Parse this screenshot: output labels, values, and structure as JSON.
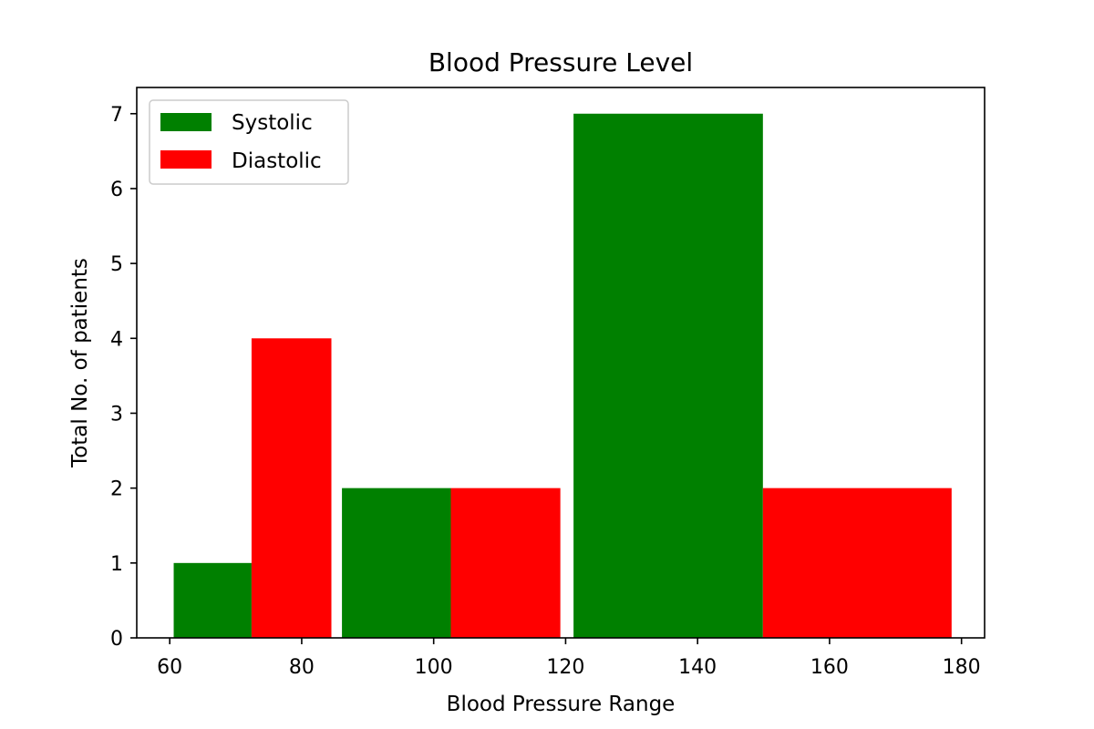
{
  "chart_data": {
    "type": "bar",
    "title": "Blood Pressure Level",
    "xlabel": "Blood Pressure Range",
    "ylabel": "Total No. of patients",
    "xlim": [
      55.0,
      183.5
    ],
    "ylim": [
      0,
      7.35
    ],
    "x_ticks": [
      60,
      80,
      100,
      120,
      140,
      160,
      180
    ],
    "y_ticks": [
      0,
      1,
      2,
      3,
      4,
      5,
      6,
      7
    ],
    "grid": false,
    "legend_position": "top-left",
    "series": [
      {
        "name": "Systolic",
        "color": "#008000",
        "bars": [
          {
            "x0": 60.6,
            "x1": 72.4,
            "value": 1
          },
          {
            "x0": 86.1,
            "x1": 102.6,
            "value": 2
          },
          {
            "x0": 121.2,
            "x1": 149.9,
            "value": 7
          }
        ]
      },
      {
        "name": "Diastolic",
        "color": "#ff0000",
        "bars": [
          {
            "x0": 72.4,
            "x1": 84.5,
            "value": 4
          },
          {
            "x0": 102.6,
            "x1": 119.2,
            "value": 2
          },
          {
            "x0": 149.9,
            "x1": 178.5,
            "value": 2
          }
        ]
      }
    ]
  }
}
